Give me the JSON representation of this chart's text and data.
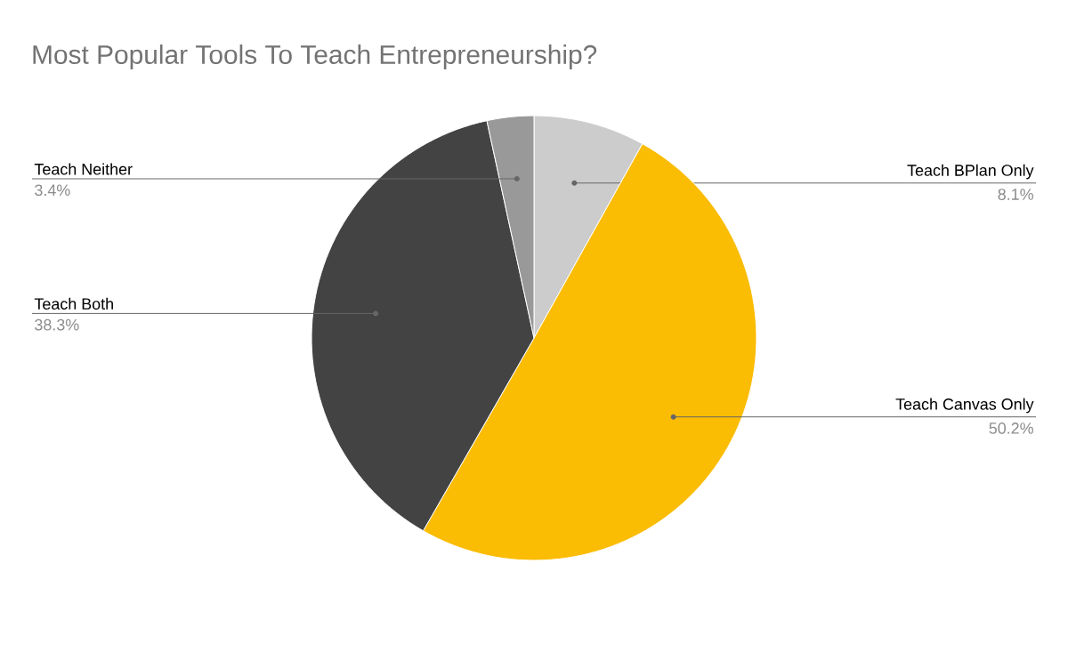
{
  "chart_data": {
    "type": "pie",
    "title": "Most Popular Tools To Teach Entrepreneurship?",
    "categories": [
      "Teach BPlan Only",
      "Teach Canvas Only",
      "Teach Both",
      "Teach Neither"
    ],
    "values": [
      8.1,
      50.2,
      38.3,
      3.4
    ],
    "colors": [
      "#cccccc",
      "#fbbc04",
      "#434343",
      "#999999"
    ],
    "value_labels": [
      "8.1%",
      "50.2%",
      "38.3%",
      "3.4%"
    ]
  }
}
